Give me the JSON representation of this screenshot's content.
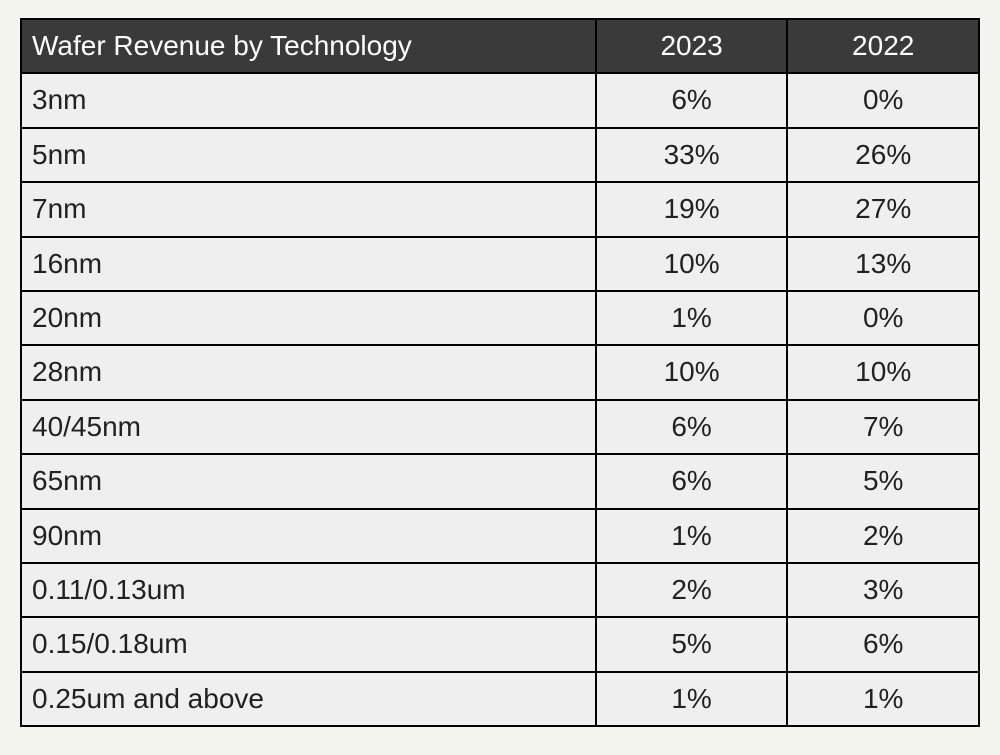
{
  "table": {
    "type": "table",
    "header_bg": "#3a3a3a",
    "header_fg": "#ffffff",
    "body_bg": "#efefef",
    "body_fg": "#212121",
    "border_color": "#000000",
    "font_family": "Arial, Helvetica, sans-serif",
    "header_fontsize": 28,
    "body_fontsize": 28,
    "columns": [
      {
        "label": "Wafer Revenue by Technology",
        "align": "left",
        "width_pct": 60
      },
      {
        "label": "2023",
        "align": "center",
        "width_pct": 20
      },
      {
        "label": "2022",
        "align": "center",
        "width_pct": 20
      }
    ],
    "rows": [
      {
        "tech": "3nm",
        "y2023": "6%",
        "y2022": "0%"
      },
      {
        "tech": "5nm",
        "y2023": "33%",
        "y2022": "26%"
      },
      {
        "tech": "7nm",
        "y2023": "19%",
        "y2022": "27%"
      },
      {
        "tech": "16nm",
        "y2023": "10%",
        "y2022": "13%"
      },
      {
        "tech": "20nm",
        "y2023": "1%",
        "y2022": "0%"
      },
      {
        "tech": "28nm",
        "y2023": "10%",
        "y2022": "10%"
      },
      {
        "tech": "40/45nm",
        "y2023": "6%",
        "y2022": "7%"
      },
      {
        "tech": "65nm",
        "y2023": "6%",
        "y2022": "5%"
      },
      {
        "tech": "90nm",
        "y2023": "1%",
        "y2022": "2%"
      },
      {
        "tech": "0.11/0.13um",
        "y2023": "2%",
        "y2022": "3%"
      },
      {
        "tech": "0.15/0.18um",
        "y2023": "5%",
        "y2022": "6%"
      },
      {
        "tech": "0.25um and above",
        "y2023": "1%",
        "y2022": "1%"
      }
    ]
  }
}
